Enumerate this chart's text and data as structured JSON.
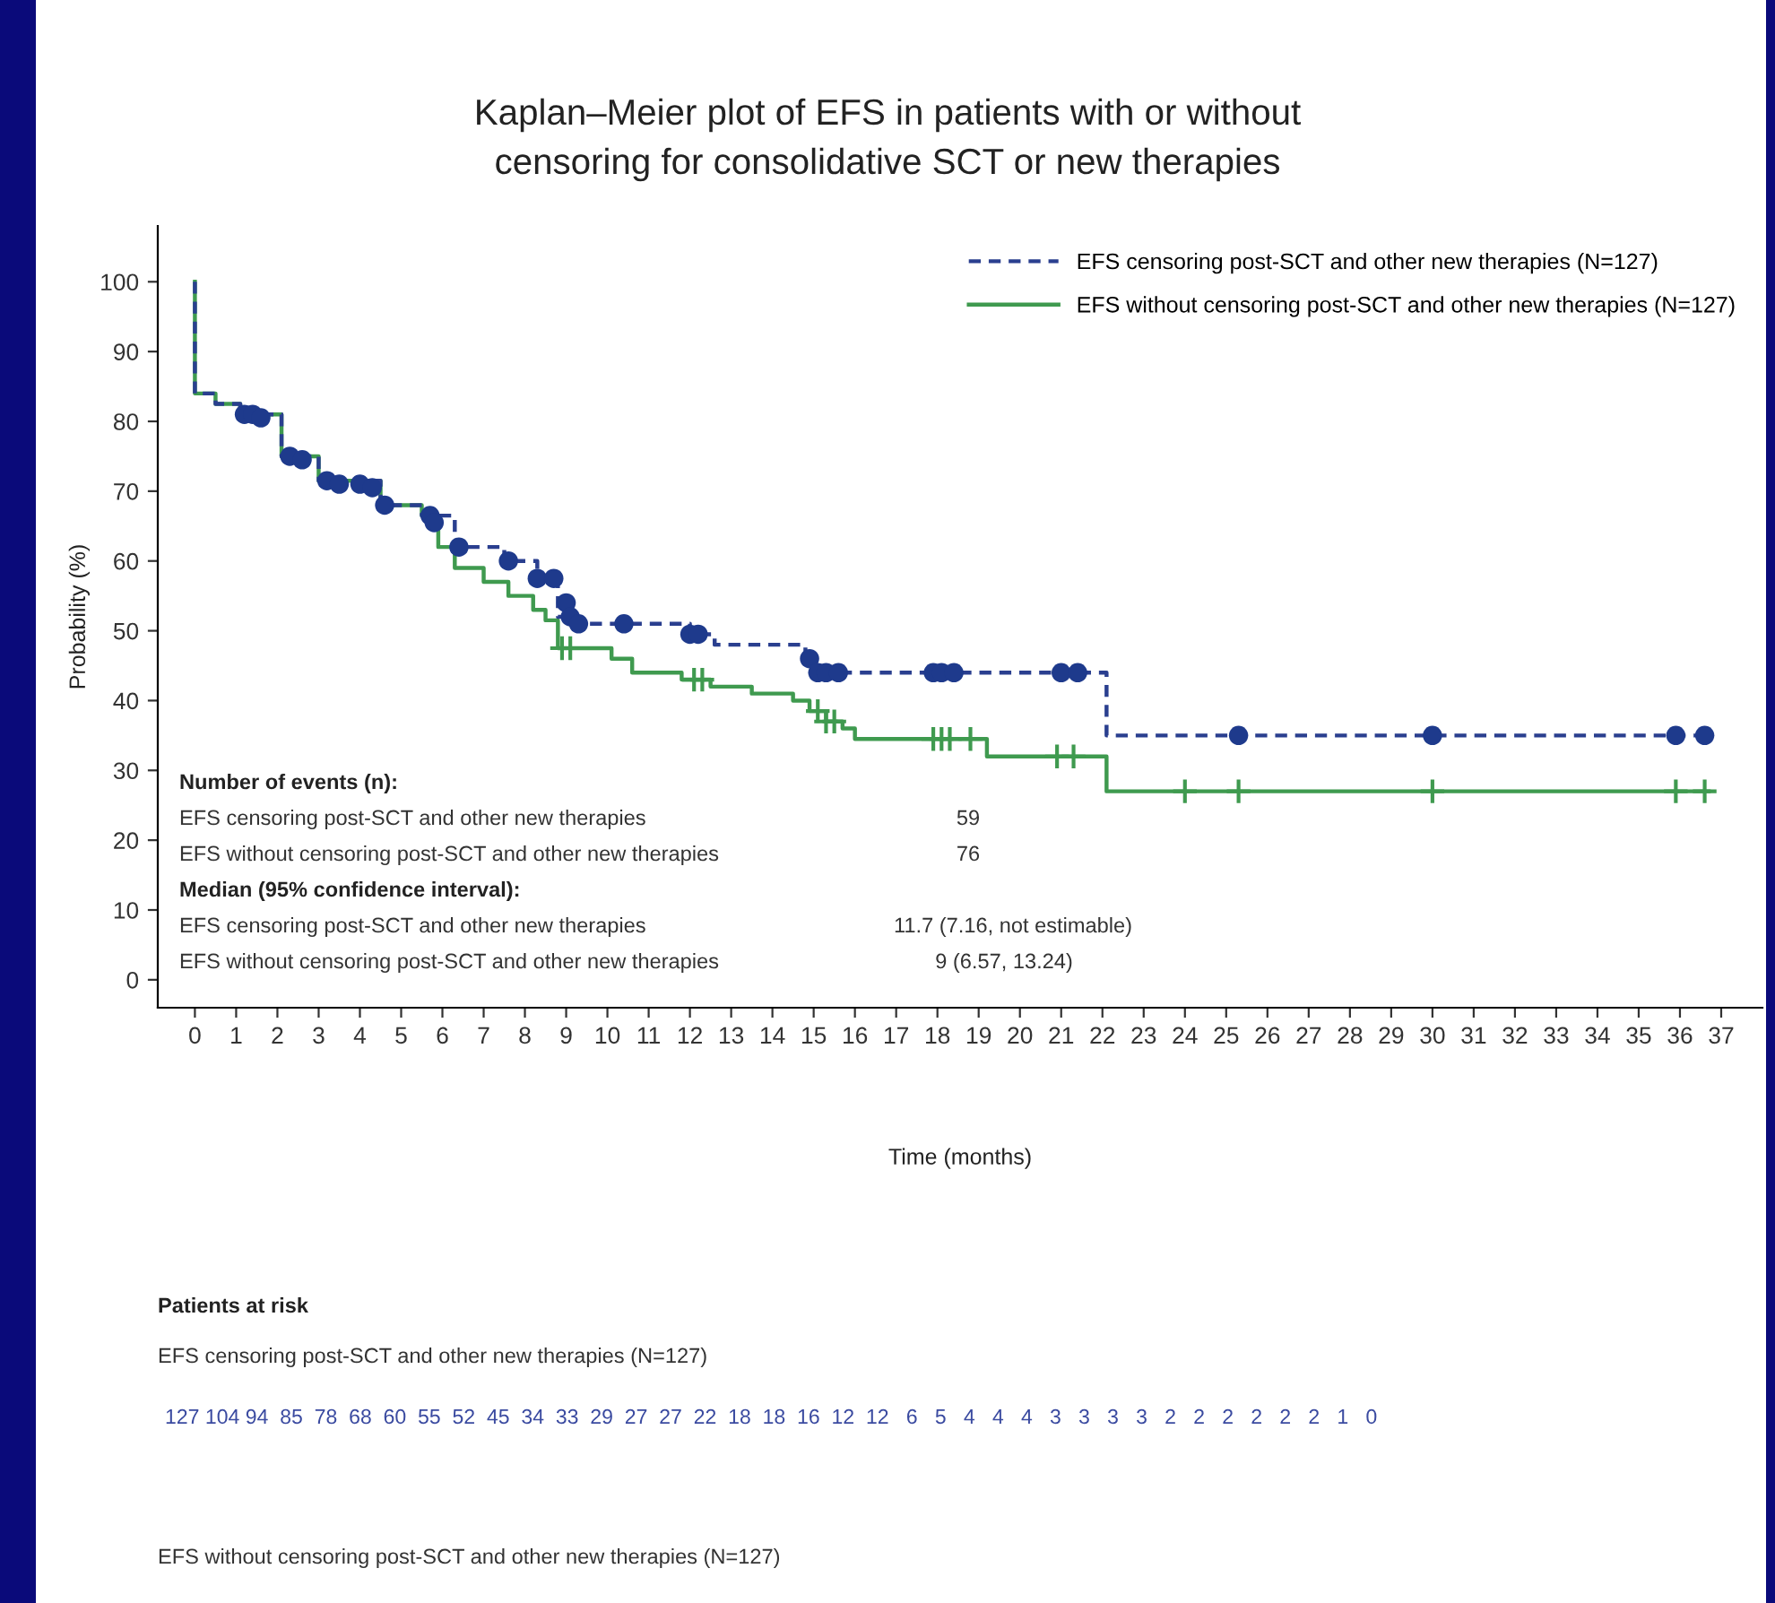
{
  "chart_data": {
    "type": "step",
    "title": "Kaplan–Meier plot of EFS in patients with or without\ncensoring for consolidative SCT or new therapies",
    "xlabel": "Time (months)",
    "ylabel": "Probability (%)",
    "xlim": [
      -0.9,
      38
    ],
    "ylim": [
      -4,
      108
    ],
    "xticks": [
      0,
      1,
      2,
      3,
      4,
      5,
      6,
      7,
      8,
      9,
      10,
      11,
      12,
      13,
      14,
      15,
      16,
      17,
      18,
      19,
      20,
      21,
      22,
      23,
      24,
      25,
      26,
      27,
      28,
      29,
      30,
      31,
      32,
      33,
      34,
      35,
      36,
      37
    ],
    "yticks": [
      0,
      10,
      20,
      30,
      40,
      50,
      60,
      70,
      80,
      90,
      100
    ],
    "grid": false,
    "legend": "top right",
    "series": [
      {
        "name": "EFS censoring post-SCT and other new therapies (N=127)",
        "color": "#2a3f8f",
        "line_style": "dashed",
        "marker": "none",
        "x": [
          0,
          0,
          0.5,
          1.1,
          2.1,
          3.0,
          4.5,
          5.5,
          6.3,
          7.5,
          8.3,
          8.8,
          9.0,
          12.0,
          12.6,
          14.8,
          15.0,
          22.1,
          36.6
        ],
        "values": [
          100,
          84,
          82.5,
          81,
          75,
          71.5,
          68,
          66.5,
          62,
          60,
          57.5,
          52,
          51,
          49.5,
          48,
          46,
          44,
          35,
          35
        ]
      },
      {
        "name": "EFS without censoring post-SCT and other new therapies (N=127)",
        "color": "#3f9a4f",
        "line_style": "solid",
        "marker": "none",
        "x": [
          0,
          0,
          0.5,
          1.1,
          2.1,
          3.0,
          4.5,
          5.5,
          5.9,
          6.3,
          7.0,
          7.6,
          8.2,
          8.5,
          8.8,
          10.1,
          10.6,
          11.8,
          12.5,
          13.5,
          14.5,
          14.9,
          15.3,
          15.7,
          16.0,
          19.2,
          22.1,
          36.7
        ],
        "values": [
          100,
          84,
          82.5,
          81,
          75,
          71.5,
          68,
          66.5,
          62,
          59,
          57,
          55,
          53,
          51.5,
          47.5,
          46,
          44,
          43,
          42,
          41,
          40,
          38.5,
          37,
          36,
          34.5,
          32,
          27,
          27
        ]
      },
      {
        "type": "scatter",
        "color": "#3f9a4f",
        "marker": "cross",
        "x": [
          8.9,
          9.1,
          12.1,
          12.3,
          15.1,
          15.3,
          15.5,
          17.9,
          18.1,
          18.3,
          18.8,
          20.9,
          21.3,
          24.0,
          25.3,
          30.0,
          35.9,
          36.6
        ],
        "values": [
          47.5,
          47.5,
          43,
          43,
          38.5,
          37,
          37,
          34.5,
          34.5,
          34.5,
          34.5,
          32,
          32,
          27,
          27,
          27,
          27,
          27
        ]
      },
      {
        "type": "scatter",
        "color": "#1e3a8c",
        "marker": "circle",
        "x": [
          1.2,
          1.4,
          1.6,
          2.3,
          2.6,
          3.2,
          3.5,
          4.0,
          4.3,
          4.6,
          5.7,
          5.8,
          6.4,
          7.6,
          8.3,
          8.7,
          9.0,
          9.1,
          9.3,
          10.4,
          12.0,
          12.2,
          14.9,
          15.1,
          15.3,
          15.6,
          17.9,
          18.1,
          18.4,
          21.0,
          21.4,
          25.3,
          30.0,
          35.9,
          36.6
        ],
        "values": [
          81,
          81,
          80.5,
          75,
          74.5,
          71.5,
          71,
          71,
          70.5,
          68,
          66.5,
          65.5,
          62,
          60,
          57.5,
          57.5,
          54,
          52,
          51,
          51,
          49.5,
          49.5,
          46,
          44,
          44,
          44,
          44,
          44,
          44,
          44,
          44,
          35,
          35,
          35,
          35
        ]
      }
    ],
    "annotations": [
      "Number of events (n):",
      "EFS censoring post-SCT and other new therapies",
      "59",
      "EFS without censoring post-SCT and other new therapies",
      "76",
      "Median (95% confidence interval):",
      "EFS censoring post-SCT and other new therapies",
      "11.7 (7.16, not estimable)",
      "EFS without censoring post-SCT and other new therapies",
      "9 (6.57, 13.24)",
      "Patients at risk",
      "EFS censoring post-SCT and other new therapies (N=127)",
      "127 104 94  85  78  68  60  55  52  45  34  33  29  27  27  22  18  18  16  12  12   6   5   4   4   4   3   3   3   3   2   2   2   2   2   2   1   0",
      "EFS without censoring post-SCT and other new therapies (N=127)"
    ]
  }
}
